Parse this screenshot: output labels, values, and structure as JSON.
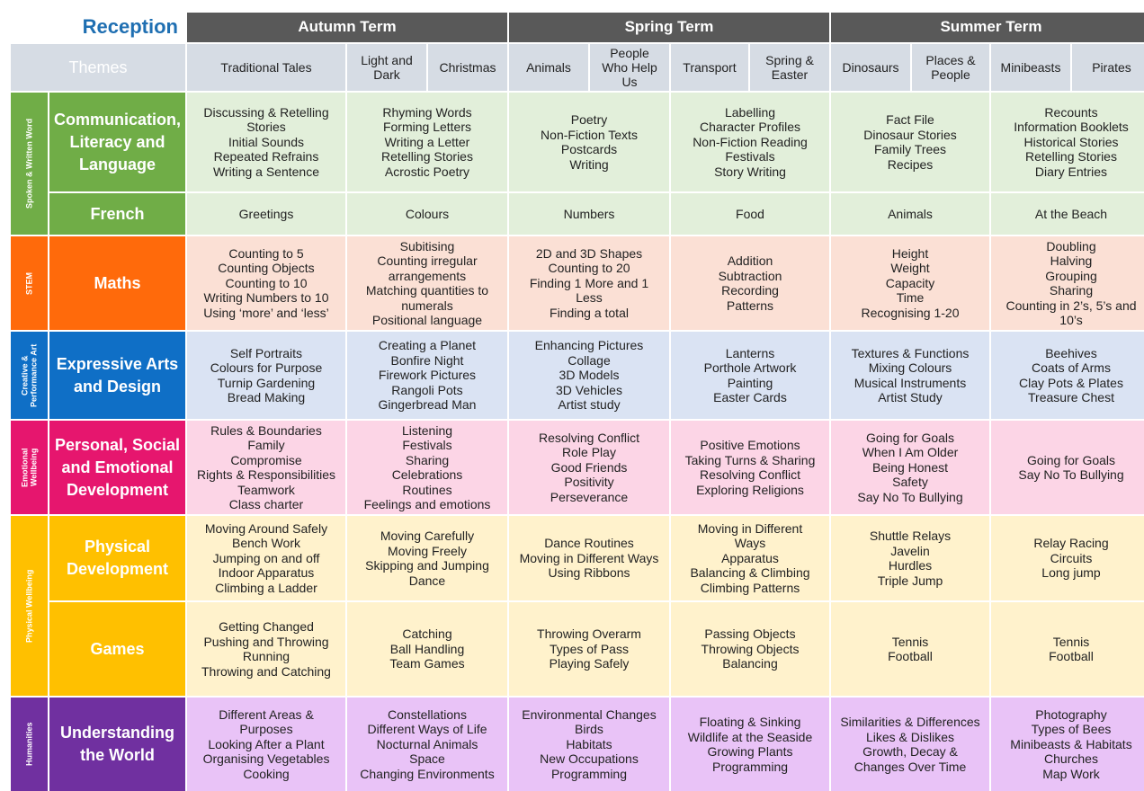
{
  "title": "Reception",
  "terms": [
    "Autumn Term",
    "Spring Term",
    "Summer Term"
  ],
  "themes_label": "Themes",
  "themes": [
    "Traditional Tales",
    "Light and\nDark",
    "Christmas",
    "Animals",
    "People\nWho Help\nUs",
    "Transport",
    "Spring &\nEaster",
    "Dinosaurs",
    "Places &\nPeople",
    "Minibeasts",
    "Pirates"
  ],
  "groups": {
    "spoken": "Spoken & Written Word",
    "stem": "STEM",
    "creative": "Creative &\nPerformance Art",
    "emotional": "Emotional\nWellbeing",
    "physical": "Physical Wellbeing",
    "humanities": "Humanities"
  },
  "rows": {
    "communication": {
      "label": "Communication,\nLiteracy and\nLanguage",
      "cells": [
        "Discussing & Retelling\nStories\nInitial Sounds\nRepeated Refrains\nWriting a Sentence",
        "Rhyming Words\nForming Letters\nWriting a Letter\nRetelling Stories\nAcrostic Poetry",
        "Poetry\nNon-Fiction Texts\nPostcards\nWriting",
        "Labelling\nCharacter Profiles\nNon-Fiction Reading\nFestivals\nStory Writing",
        "Fact File\nDinosaur Stories\nFamily Trees\nRecipes",
        "Recounts\nInformation Booklets\nHistorical Stories\nRetelling Stories\nDiary Entries"
      ]
    },
    "french": {
      "label": "French",
      "cells": [
        "Greetings",
        "Colours",
        "Numbers",
        "Food",
        "Animals",
        "At the Beach"
      ]
    },
    "maths": {
      "label": "Maths",
      "cells": [
        "Counting to 5\nCounting Objects\nCounting to 10\nWriting Numbers to 10\nUsing ‘more’ and ‘less’",
        "Subitising\nCounting irregular\narrangements\nMatching quantities to\nnumerals\nPositional language",
        "2D and 3D Shapes\nCounting to 20\nFinding 1 More and 1\nLess\nFinding a total",
        "Addition\nSubtraction\nRecording\nPatterns",
        "Height\nWeight\nCapacity\nTime\nRecognising 1-20",
        "Doubling\nHalving\nGrouping\nSharing\nCounting in 2’s, 5’s and\n10’s"
      ]
    },
    "arts": {
      "label": "Expressive Arts\nand Design",
      "cells": [
        "Self Portraits\nColours for Purpose\nTurnip Gardening\nBread Making",
        "Creating a Planet\nBonfire Night\nFirework Pictures\nRangoli Pots\nGingerbread Man",
        "Enhancing Pictures\nCollage\n3D Models\n3D Vehicles\nArtist study",
        "Lanterns\nPorthole Artwork\nPainting\nEaster Cards",
        "Textures & Functions\nMixing Colours\nMusical Instruments\nArtist Study",
        "Beehives\nCoats of Arms\nClay Pots & Plates\nTreasure Chest"
      ]
    },
    "psed": {
      "label": "Personal, Social\nand Emotional\nDevelopment",
      "cells": [
        "Rules & Boundaries\nFamily\nCompromise\nRights & Responsibilities\nTeamwork\nClass charter",
        "Listening\nFestivals\nSharing\nCelebrations\nRoutines\nFeelings and emotions",
        "Resolving Conflict\nRole Play\nGood Friends\nPositivity\nPerseverance",
        "Positive Emotions\nTaking Turns & Sharing\nResolving Conflict\nExploring Religions",
        "Going for Goals\nWhen I Am Older\nBeing Honest\nSafety\nSay No To Bullying",
        "Going for Goals\nSay No To Bullying"
      ]
    },
    "physical": {
      "label": "Physical\nDevelopment",
      "cells": [
        "Moving Around Safely\nBench Work\nJumping on and off\nIndoor Apparatus\nClimbing a Ladder",
        "Moving Carefully\nMoving Freely\nSkipping and Jumping\nDance",
        "Dance Routines\nMoving in Different Ways\nUsing Ribbons",
        "Moving in Different\nWays\nApparatus\nBalancing & Climbing\nClimbing Patterns",
        "Shuttle Relays\nJavelin\nHurdles\nTriple Jump",
        "Relay Racing\nCircuits\nLong jump"
      ]
    },
    "games": {
      "label": "Games",
      "cells": [
        "Getting Changed\nPushing and Throwing\nRunning\nThrowing and Catching",
        "Catching\nBall Handling\nTeam Games",
        "Throwing Overarm\nTypes of Pass\nPlaying Safely",
        "Passing Objects\nThrowing Objects\nBalancing",
        "Tennis\nFootball",
        "Tennis\nFootball"
      ]
    },
    "world": {
      "label": "Understanding\nthe World",
      "cells": [
        "Different Areas &\nPurposes\nLooking After a Plant\nOrganising Vegetables\nCooking",
        "Constellations\nDifferent Ways of Life\nNocturnal Animals\nSpace\nChanging Environments",
        "Environmental Changes\nBirds\nHabitats\nNew Occupations\nProgramming",
        "Floating & Sinking\nWildlife at the Seaside\nGrowing Plants\nProgramming",
        "Similarities & Differences\nLikes & Dislikes\nGrowth, Decay &\nChanges Over Time",
        "Photography\nTypes of Bees\nMinibeasts & Habitats\nChurches\nMap Work"
      ]
    }
  },
  "colors": {
    "term_header": "#595959",
    "title": "#1f6fb2",
    "themes_bg": "#d6dce4",
    "green": "#70ad47",
    "orange": "#ff6a0b",
    "blue": "#0f6fc6",
    "pink": "#e6166e",
    "yellow": "#ffc000",
    "purple": "#7030a0"
  }
}
